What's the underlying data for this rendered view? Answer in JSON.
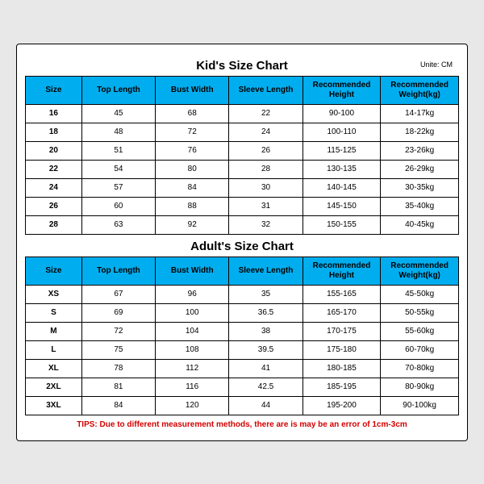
{
  "kids": {
    "title": "Kid's Size Chart",
    "unit": "Unite: CM",
    "columns": [
      "Size",
      "Top Length",
      "Bust Width",
      "Sleeve Length",
      "Recommended Height",
      "Recommended Weight(kg)"
    ],
    "rows": [
      [
        "16",
        "45",
        "68",
        "22",
        "90-100",
        "14-17kg"
      ],
      [
        "18",
        "48",
        "72",
        "24",
        "100-110",
        "18-22kg"
      ],
      [
        "20",
        "51",
        "76",
        "26",
        "115-125",
        "23-26kg"
      ],
      [
        "22",
        "54",
        "80",
        "28",
        "130-135",
        "26-29kg"
      ],
      [
        "24",
        "57",
        "84",
        "30",
        "140-145",
        "30-35kg"
      ],
      [
        "26",
        "60",
        "88",
        "31",
        "145-150",
        "35-40kg"
      ],
      [
        "28",
        "63",
        "92",
        "32",
        "150-155",
        "40-45kg"
      ]
    ]
  },
  "adults": {
    "title": "Adult's Size Chart",
    "columns": [
      "Size",
      "Top Length",
      "Bust Width",
      "Sleeve Length",
      "Recommended Height",
      "Recommended Weight(kg)"
    ],
    "rows": [
      [
        "XS",
        "67",
        "96",
        "35",
        "155-165",
        "45-50kg"
      ],
      [
        "S",
        "69",
        "100",
        "36.5",
        "165-170",
        "50-55kg"
      ],
      [
        "M",
        "72",
        "104",
        "38",
        "170-175",
        "55-60kg"
      ],
      [
        "L",
        "75",
        "108",
        "39.5",
        "175-180",
        "60-70kg"
      ],
      [
        "XL",
        "78",
        "112",
        "41",
        "180-185",
        "70-80kg"
      ],
      [
        "2XL",
        "81",
        "116",
        "42.5",
        "185-195",
        "80-90kg"
      ],
      [
        "3XL",
        "84",
        "120",
        "44",
        "195-200",
        "90-100kg"
      ]
    ]
  },
  "tips": "TIPS: Due to different measurement methods, there are is may be an error of 1cm-3cm",
  "style": {
    "header_bg": "#00aeef",
    "border_color": "#000000",
    "background": "#ffffff",
    "tips_color": "#d40000",
    "font_family": "Arial",
    "title_fontsize": 15,
    "cell_fontsize": 10,
    "col_widths_pct": [
      13,
      17,
      17,
      17,
      18,
      18
    ]
  }
}
